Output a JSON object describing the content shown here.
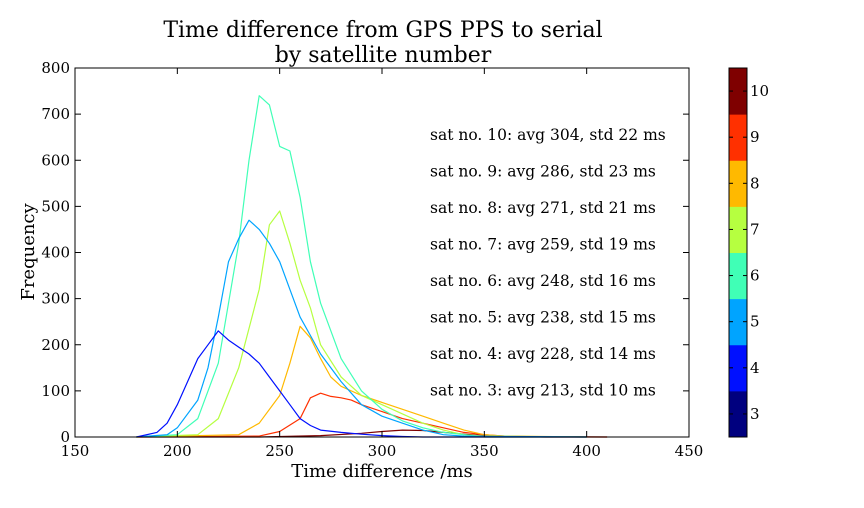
{
  "chart_data": {
    "type": "line",
    "title": "Time difference from GPS PPS to serial",
    "subtitle": "by satellite number",
    "xlabel": "Time difference /ms",
    "ylabel": "Frequency",
    "xlim": [
      150,
      450
    ],
    "ylim": [
      0,
      800
    ],
    "xticks": [
      150,
      200,
      250,
      300,
      350,
      400,
      450
    ],
    "yticks": [
      0,
      100,
      200,
      300,
      400,
      500,
      600,
      700,
      800
    ],
    "grid": false,
    "colorbar": {
      "ticks": [
        3,
        4,
        5,
        6,
        7,
        8,
        9,
        10
      ],
      "colors": [
        "#00007f",
        "#0010ff",
        "#00a4ff",
        "#40ffb6",
        "#b6ff40",
        "#ffb900",
        "#ff3000",
        "#7f0000"
      ]
    },
    "annotations": [
      "sat no. 10: avg 304, std 22 ms",
      "sat no. 9: avg 286, std 23 ms",
      "sat no. 8: avg 271, std 21 ms",
      "sat no. 7: avg 259, std 19 ms",
      "sat no. 6: avg 248, std 16 ms",
      "sat no. 5: avg 238, std 15 ms",
      "sat no. 4: avg 228, std 14 ms",
      "sat no. 3: avg 213, std 10 ms"
    ],
    "series": [
      {
        "sat": 10,
        "color": "#7f0000",
        "x": [
          180,
          240,
          270,
          290,
          300,
          310,
          320,
          330,
          340,
          350,
          360,
          410
        ],
        "y": [
          0,
          0,
          3,
          8,
          12,
          15,
          14,
          10,
          6,
          3,
          1,
          0
        ]
      },
      {
        "sat": 9,
        "color": "#ff3000",
        "x": [
          180,
          240,
          250,
          260,
          265,
          270,
          275,
          280,
          285,
          290,
          300,
          310,
          320,
          330,
          340,
          350,
          360,
          380,
          410
        ],
        "y": [
          0,
          2,
          12,
          40,
          85,
          95,
          88,
          85,
          80,
          70,
          55,
          40,
          30,
          20,
          10,
          5,
          2,
          0,
          0
        ]
      },
      {
        "sat": 8,
        "color": "#ffb900",
        "x": [
          180,
          230,
          240,
          250,
          255,
          260,
          265,
          270,
          275,
          280,
          290,
          300,
          310,
          320,
          330,
          340,
          350,
          360,
          400
        ],
        "y": [
          0,
          5,
          30,
          90,
          160,
          240,
          215,
          170,
          130,
          110,
          90,
          75,
          60,
          45,
          30,
          15,
          5,
          2,
          0
        ]
      },
      {
        "sat": 7,
        "color": "#b6ff40",
        "x": [
          180,
          210,
          220,
          230,
          240,
          245,
          250,
          255,
          260,
          265,
          270,
          280,
          290,
          300,
          310,
          320,
          330,
          340,
          350,
          400
        ],
        "y": [
          0,
          5,
          40,
          150,
          320,
          460,
          490,
          420,
          340,
          280,
          200,
          130,
          90,
          70,
          50,
          30,
          15,
          5,
          2,
          0
        ]
      },
      {
        "sat": 6,
        "color": "#40ffb6",
        "x": [
          180,
          200,
          210,
          220,
          230,
          235,
          240,
          245,
          250,
          255,
          260,
          265,
          270,
          280,
          290,
          300,
          310,
          320,
          330,
          340,
          350,
          400
        ],
        "y": [
          0,
          5,
          40,
          160,
          420,
          600,
          740,
          720,
          630,
          620,
          520,
          380,
          290,
          170,
          100,
          60,
          35,
          20,
          10,
          5,
          0,
          0
        ]
      },
      {
        "sat": 5,
        "color": "#00a4ff",
        "x": [
          180,
          195,
          200,
          210,
          215,
          220,
          225,
          230,
          235,
          240,
          245,
          250,
          255,
          260,
          265,
          270,
          280,
          290,
          300,
          310,
          320,
          330,
          340,
          400
        ],
        "y": [
          0,
          5,
          20,
          80,
          150,
          260,
          380,
          430,
          470,
          450,
          420,
          380,
          320,
          260,
          220,
          180,
          120,
          70,
          45,
          30,
          15,
          5,
          2,
          0
        ]
      },
      {
        "sat": 4,
        "color": "#0010ff",
        "x": [
          180,
          190,
          195,
          200,
          205,
          210,
          215,
          220,
          225,
          230,
          235,
          240,
          245,
          250,
          255,
          260,
          265,
          270,
          280,
          290,
          300,
          310,
          320,
          400
        ],
        "y": [
          0,
          10,
          30,
          70,
          120,
          170,
          200,
          230,
          210,
          195,
          180,
          160,
          130,
          100,
          70,
          40,
          25,
          15,
          10,
          6,
          3,
          1,
          0,
          0
        ]
      }
    ]
  }
}
